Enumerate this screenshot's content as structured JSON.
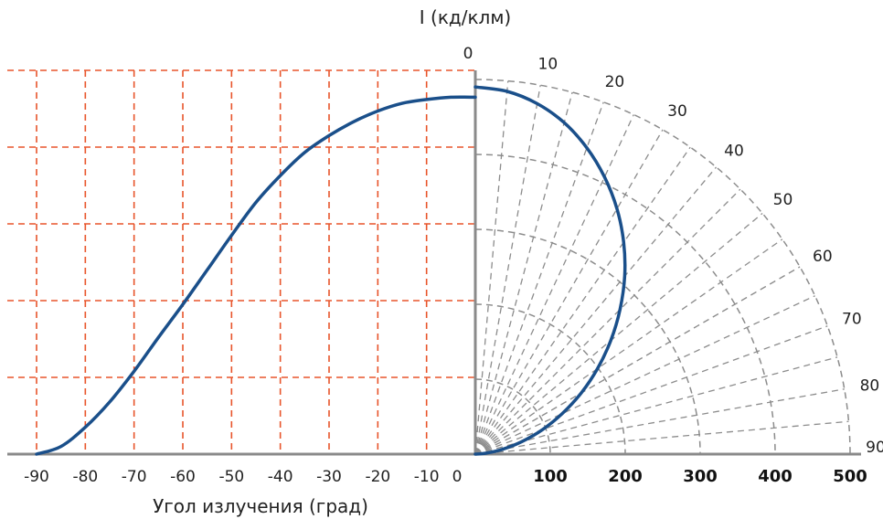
{
  "chart_data": [
    {
      "type": "line",
      "xlabel": "Угол излучения (град)",
      "ylabel": "I (кд/клм)",
      "xlim": [
        -90,
        0
      ],
      "ylim": [
        0,
        500
      ],
      "x_tick_labels": [
        "-90",
        "-80",
        "-70",
        "-60",
        "-50",
        "-40",
        "-30",
        "-20",
        "-10",
        "0"
      ],
      "grid": true,
      "grid_color": "#e8552b",
      "series": [
        {
          "color": "#1a4f8a",
          "x": [
            -90,
            -85,
            -80,
            -75,
            -70,
            -65,
            -60,
            -55,
            -50,
            -45,
            -40,
            -35,
            -30,
            -25,
            -20,
            -15,
            -10,
            -5,
            0
          ],
          "y": [
            0,
            10,
            35,
            68,
            108,
            152,
            195,
            240,
            285,
            328,
            363,
            393,
            415,
            433,
            447,
            457,
            462,
            465,
            465
          ]
        }
      ]
    },
    {
      "type": "line",
      "subtype": "polar",
      "ylabel": "I (кд/клм)",
      "angle_labels": [
        "0",
        "10",
        "20",
        "30",
        "40",
        "50",
        "60",
        "70",
        "80",
        "90"
      ],
      "radial_tick_labels": [
        "100",
        "200",
        "300",
        "400",
        "500"
      ],
      "radial_range": [
        0,
        500
      ],
      "grid": true,
      "grid_color": "#8c8c8c",
      "series": [
        {
          "color": "#1a4f8a",
          "angle": [
            0,
            5,
            10,
            15,
            20,
            25,
            30,
            35,
            40,
            45,
            50,
            55,
            60,
            65,
            70,
            75,
            80,
            85,
            90
          ],
          "r": [
            490,
            486,
            475,
            458,
            435,
            408,
            378,
            345,
            310,
            273,
            236,
            199,
            163,
            128,
            95,
            64,
            36,
            14,
            0
          ]
        }
      ]
    }
  ]
}
